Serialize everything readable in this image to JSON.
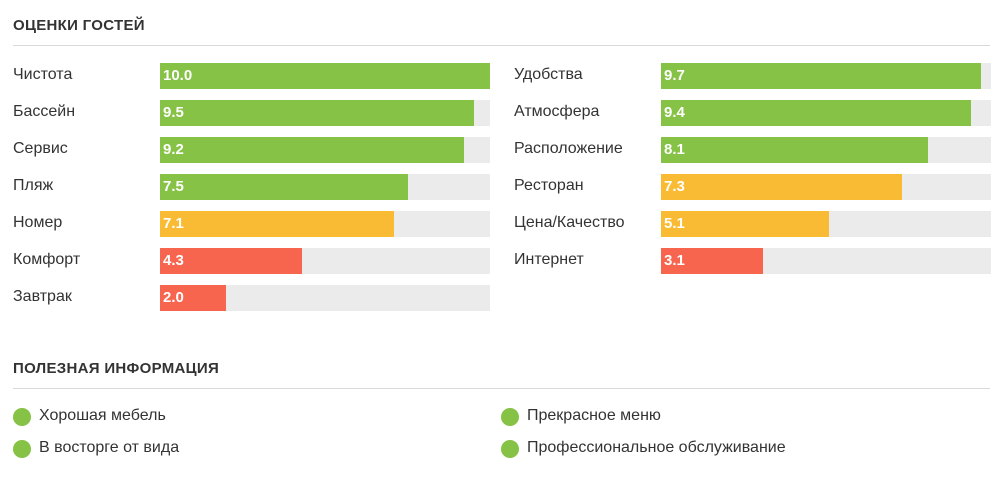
{
  "guest_ratings": {
    "title": "ОЦЕНКИ ГОСТЕЙ",
    "scale_max": 10,
    "colors": {
      "high": "#85c246",
      "mid": "#f9bb33",
      "low": "#f8654f"
    },
    "left": [
      {
        "label": "Чистота",
        "value": "10.0",
        "level": "high"
      },
      {
        "label": "Бассейн",
        "value": "9.5",
        "level": "high"
      },
      {
        "label": "Сервис",
        "value": "9.2",
        "level": "high"
      },
      {
        "label": "Пляж",
        "value": "7.5",
        "level": "high"
      },
      {
        "label": "Номер",
        "value": "7.1",
        "level": "mid"
      },
      {
        "label": "Комфорт",
        "value": "4.3",
        "level": "low"
      },
      {
        "label": "Завтрак",
        "value": "2.0",
        "level": "low"
      }
    ],
    "right": [
      {
        "label": "Удобства",
        "value": "9.7",
        "level": "high"
      },
      {
        "label": "Атмосфера",
        "value": "9.4",
        "level": "high"
      },
      {
        "label": "Расположение",
        "value": "8.1",
        "level": "high"
      },
      {
        "label": "Ресторан",
        "value": "7.3",
        "level": "mid"
      },
      {
        "label": "Цена/Качество",
        "value": "5.1",
        "level": "mid"
      },
      {
        "label": "Интернет",
        "value": "3.1",
        "level": "low"
      }
    ]
  },
  "useful_info": {
    "title": "ПОЛЕЗНАЯ ИНФОРМАЦИЯ",
    "dot_color": "#85c246",
    "left": [
      "Хорошая мебель",
      "В восторге от вида"
    ],
    "right": [
      "Прекрасное меню",
      "Профессиональное обслуживание"
    ]
  }
}
